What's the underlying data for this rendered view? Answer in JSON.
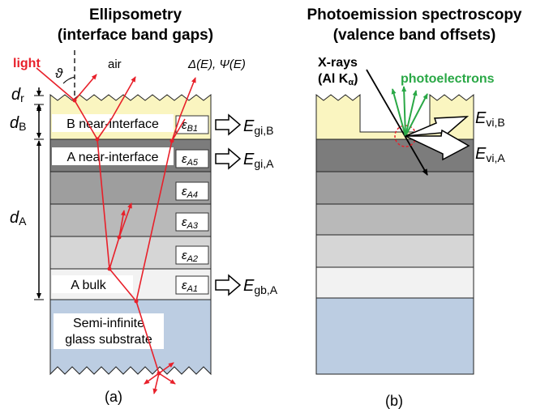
{
  "panel_a": {
    "title_line1": "Ellipsometry",
    "title_line2": "(interface band gaps)",
    "caption": "(a)",
    "light_label": "light",
    "theta_label": "ϑ",
    "air_label": "air",
    "output_label": "Δ(E), Ψ(E)",
    "dim_r_main": "d",
    "dim_r_sub": "r",
    "dim_b_main": "d",
    "dim_b_sub": "B",
    "dim_a_main": "d",
    "dim_a_sub": "A",
    "layer_b_label": "B near-interface",
    "layer_a_interface_label": "A near-interface",
    "layer_a_bulk_label": "A bulk",
    "substrate_line1": "Semi-infinite",
    "substrate_line2": "glass substrate",
    "eps_b1_main": "ε",
    "eps_b1_sub": "B1",
    "eps_a5_main": "ε",
    "eps_a5_sub": "A5",
    "eps_a4_main": "ε",
    "eps_a4_sub": "A4",
    "eps_a3_main": "ε",
    "eps_a3_sub": "A3",
    "eps_a2_main": "ε",
    "eps_a2_sub": "A2",
    "eps_a1_main": "ε",
    "eps_a1_sub": "A1",
    "egi_b_main": "E",
    "egi_b_sub": "gi,B",
    "egi_a_main": "E",
    "egi_a_sub": "gi,A",
    "egb_a_main": "E",
    "egb_a_sub": "gb,A"
  },
  "panel_b": {
    "title_line1": "Photoemission spectroscopy",
    "title_line2": "(valence band offsets)",
    "caption": "(b)",
    "xrays_line1": "X-rays",
    "xrays_line2_prefix": "(Al K",
    "xrays_line2_sub": "α",
    "xrays_line2_suffix": ")",
    "photoelectrons_label": "photoelectrons",
    "evi_b_main": "E",
    "evi_b_sub": "vi,B",
    "evi_a_main": "E",
    "evi_a_sub": "vi,A"
  },
  "colors": {
    "layer_b": "#faf5c0",
    "layer_dark": "#7c7c7c",
    "layer_a4": "#9e9e9e",
    "layer_a3": "#b9b9b9",
    "layer_a2": "#d6d6d6",
    "layer_bulk": "#f2f2f2",
    "substrate": "#bccde2",
    "ray": "#e8202a",
    "photoelectron": "#2aa846"
  }
}
